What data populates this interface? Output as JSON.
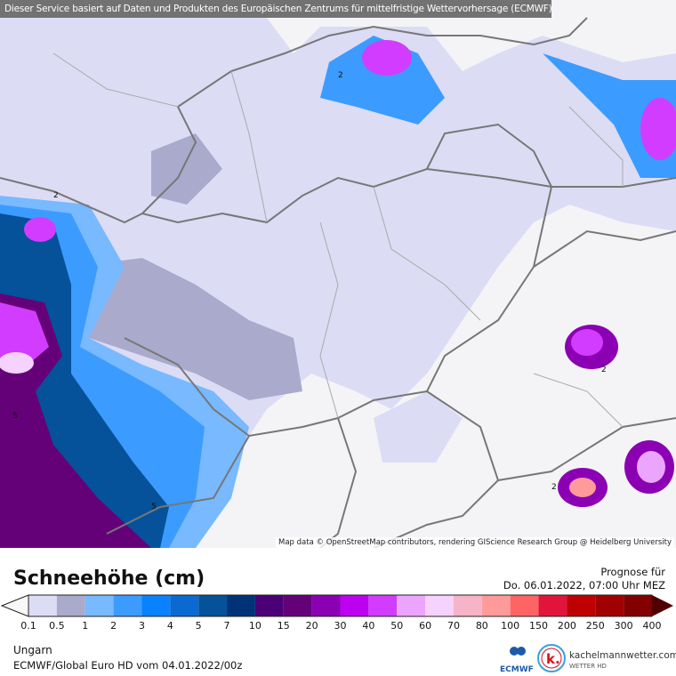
{
  "header": {
    "credit": "Dieser Service basiert auf Daten und Produkten des Europäischen Zentrums für mittelfristige Wettervorhersage (ECMWF)"
  },
  "map": {
    "attribution": "Map data © OpenStreetMap contributors, rendering GIScience Research Group @ Heidelberg University",
    "contour_labels": [
      "2",
      "2",
      "2",
      "2",
      "5",
      "5"
    ]
  },
  "legend": {
    "title": "Schneehöhe (cm)",
    "labels": [
      "0.1",
      "0.5",
      "1",
      "2",
      "3",
      "4",
      "5",
      "7",
      "10",
      "15",
      "20",
      "30",
      "40",
      "50",
      "60",
      "70",
      "80",
      "100",
      "150",
      "200",
      "250",
      "300",
      "400"
    ],
    "colors": [
      "#dcdcf5",
      "#aaaacc",
      "#78b9ff",
      "#3c9bff",
      "#0a82ff",
      "#0a6ad2",
      "#05529a",
      "#003278",
      "#4b0078",
      "#640078",
      "#8c00b4",
      "#be00f0",
      "#d23cff",
      "#eba5ff",
      "#f5d2ff",
      "#f5b4c8",
      "#ff9a9a",
      "#ff6464",
      "#e1143c",
      "#be0000",
      "#a00000",
      "#820000"
    ],
    "under_color": "#f8f8f8",
    "over_color": "#500000"
  },
  "forecast": {
    "label": "Prognose für",
    "datetime": "Do. 06.01.2022, 07:00 Uhr MEZ"
  },
  "footer": {
    "region": "Ungarn",
    "model": "ECMWF/Global Euro HD vom  04.01.2022/00z",
    "ecmwf": "ECMWF",
    "brand": "kachelmannwetter.com",
    "brand_sub": "WETTER HD"
  }
}
